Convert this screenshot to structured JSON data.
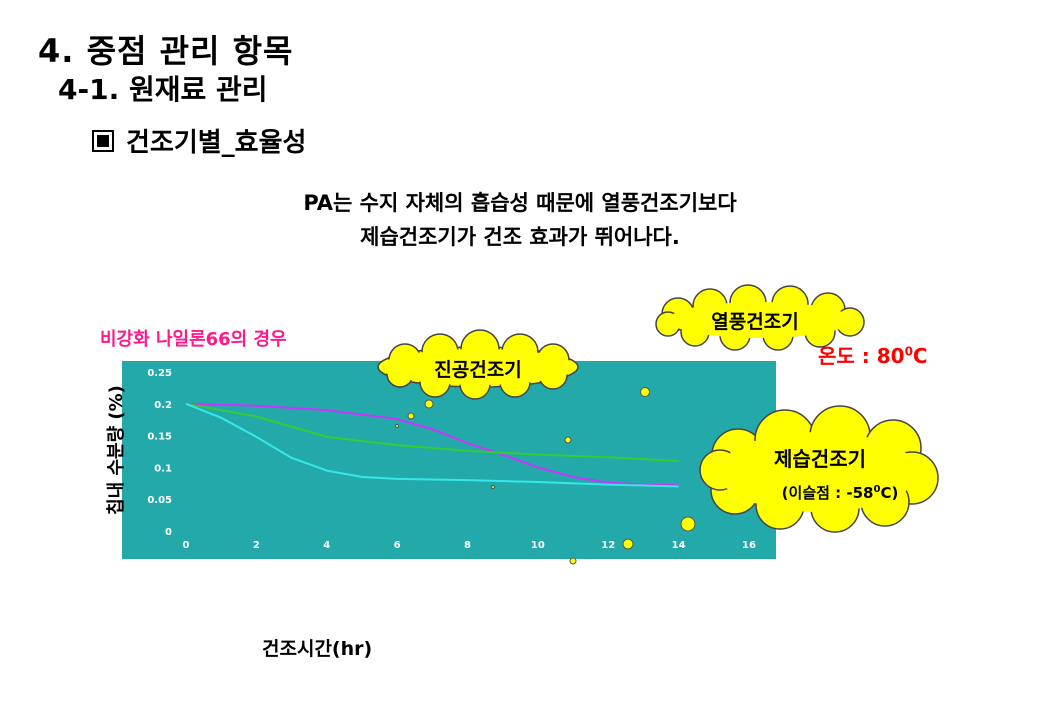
{
  "title": "4. 중점 관리 항목",
  "subtitle": "4-1. 원재료 관리",
  "section": "건조기별_효율성",
  "description_line1": "PA는 수지 자체의 흡습성 때문에 열풍건조기보다",
  "description_line2": "제습건조기가 건조 효과가 뛰어나다.",
  "case_label": "비강화 나일론66의 경우",
  "hot_air_temp_label": "온도 : 80",
  "hot_air_temp_sup": "0",
  "hot_air_temp_unit": "C",
  "clouds": {
    "vacuum": "진공건조기",
    "hot_air": "열풍건조기",
    "dehumid": "제습건조기",
    "dehumid_sub_prefix": "(이슬점 : -58",
    "dehumid_sub_sup": "0",
    "dehumid_sub_suffix": "C)"
  },
  "colors": {
    "plot_bg": "#23a9a9",
    "cloud_fill": "#ffff00",
    "purple_line": "#cc33ff",
    "green_line": "#33cc33",
    "cyan_line": "#33e8e8",
    "case_label": "#ff1a8c",
    "temp_label": "#ff0000"
  },
  "chart_data": {
    "type": "line",
    "xlabel": "건조시간(hr)",
    "ylabel": "칩내 수분량 (%)",
    "xlim": [
      0,
      16
    ],
    "ylim": [
      0,
      0.25
    ],
    "xticks": [
      "0",
      "2",
      "4",
      "6",
      "8",
      "10",
      "12",
      "14",
      "16"
    ],
    "yticks": [
      "0",
      "0.05",
      "0.1",
      "0.15",
      "0.2",
      "0.25"
    ],
    "series": [
      {
        "color": "#cc33ff",
        "x": [
          0,
          2,
          4,
          6,
          7,
          8,
          9,
          10,
          11,
          12,
          13,
          14
        ],
        "y": [
          0.2,
          0.197,
          0.19,
          0.176,
          0.16,
          0.138,
          0.12,
          0.1,
          0.085,
          0.076,
          0.073,
          0.072
        ]
      },
      {
        "color": "#33cc33",
        "x": [
          0,
          2,
          4,
          6,
          8,
          10,
          12,
          14
        ],
        "y": [
          0.2,
          0.18,
          0.148,
          0.135,
          0.126,
          0.12,
          0.116,
          0.11
        ]
      },
      {
        "color": "#33e8e8",
        "x": [
          0,
          1,
          2,
          3,
          4,
          5,
          6,
          8,
          10,
          12,
          14
        ],
        "y": [
          0.2,
          0.178,
          0.148,
          0.115,
          0.095,
          0.085,
          0.082,
          0.08,
          0.077,
          0.073,
          0.07
        ]
      }
    ]
  }
}
